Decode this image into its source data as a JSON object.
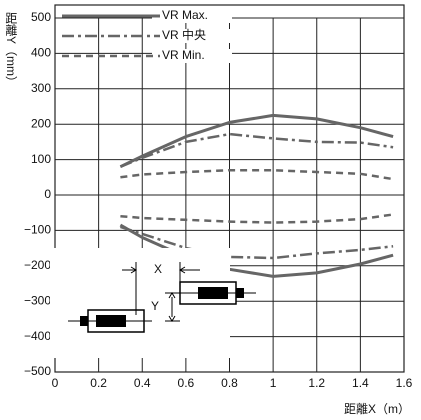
{
  "chart_data": {
    "type": "line",
    "y_label": "距離Y（mm）",
    "x_label": "距離X（m）",
    "x": [
      0.3,
      0.4,
      0.6,
      0.8,
      1.0,
      1.2,
      1.4,
      1.55
    ],
    "series": [
      {
        "name": "VR Max.",
        "color": "#666666",
        "style": "solid",
        "values": [
          80,
          110,
          165,
          205,
          225,
          215,
          190,
          165
        ],
        "lower_values": [
          -85,
          -120,
          -175,
          -210,
          -230,
          -220,
          -195,
          -170
        ]
      },
      {
        "name": "VR 中央",
        "color": "#666666",
        "style": "dashdot",
        "values": [
          80,
          105,
          150,
          172,
          160,
          150,
          148,
          135
        ],
        "lower_values": [
          -90,
          -110,
          -150,
          -175,
          -178,
          -165,
          -155,
          -145
        ]
      },
      {
        "name": "VR Min.",
        "color": "#666666",
        "style": "dashed",
        "values": [
          50,
          58,
          65,
          70,
          70,
          65,
          60,
          45
        ],
        "lower_values": [
          -60,
          -65,
          -70,
          -75,
          -78,
          -75,
          -68,
          -55
        ]
      }
    ],
    "xlim": [
      0,
      1.6
    ],
    "xticks": [
      0,
      0.2,
      0.4,
      0.6,
      0.8,
      1,
      1.2,
      1.4,
      1.6
    ],
    "ylim": [
      -500,
      500
    ],
    "yticks": [
      {
        "value": -500,
        "label": "−500"
      },
      {
        "value": -400,
        "label": "−400"
      },
      {
        "value": -300,
        "label": "−300"
      },
      {
        "value": -200,
        "label": "−200"
      },
      {
        "value": -100,
        "label": "−100"
      },
      0,
      100,
      200,
      300,
      400,
      500
    ],
    "grid": true,
    "legend": "top-left",
    "diagram": {
      "x_label": "X",
      "y_label": "Y"
    }
  }
}
